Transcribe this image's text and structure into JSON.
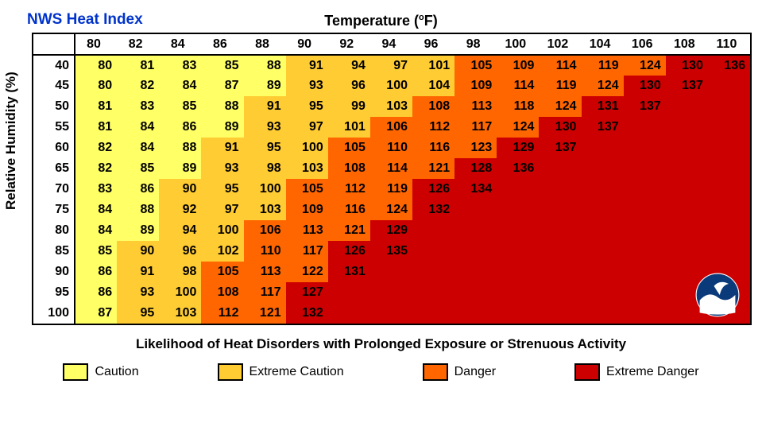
{
  "title": "NWS Heat Index",
  "temp_axis_label": "Temperature (°F)",
  "rh_axis_label": "Relative Humidity (%)",
  "subtitle": "Likelihood of Heat Disorders with Prolonged Exposure or Strenuous Activity",
  "colors": {
    "caution": "#ffff66",
    "extreme_caution": "#ffcc33",
    "danger": "#ff6600",
    "extreme_danger": "#cc0000",
    "header_bg": "#ffffff",
    "border": "#000000",
    "title_color": "#0033cc"
  },
  "temperatures": [
    80,
    82,
    84,
    86,
    88,
    90,
    92,
    94,
    96,
    98,
    100,
    102,
    104,
    106,
    108,
    110
  ],
  "humidity": [
    40,
    45,
    50,
    55,
    60,
    65,
    70,
    75,
    80,
    85,
    90,
    95,
    100
  ],
  "cells": [
    [
      80,
      81,
      83,
      85,
      88,
      91,
      94,
      97,
      101,
      105,
      109,
      114,
      119,
      124,
      130,
      136
    ],
    [
      80,
      82,
      84,
      87,
      89,
      93,
      96,
      100,
      104,
      109,
      114,
      119,
      124,
      130,
      137,
      null
    ],
    [
      81,
      83,
      85,
      88,
      91,
      95,
      99,
      103,
      108,
      113,
      118,
      124,
      131,
      137,
      null,
      null
    ],
    [
      81,
      84,
      86,
      89,
      93,
      97,
      101,
      106,
      112,
      117,
      124,
      130,
      137,
      null,
      null,
      null
    ],
    [
      82,
      84,
      88,
      91,
      95,
      100,
      105,
      110,
      116,
      123,
      129,
      137,
      null,
      null,
      null,
      null
    ],
    [
      82,
      85,
      89,
      93,
      98,
      103,
      108,
      114,
      121,
      128,
      136,
      null,
      null,
      null,
      null,
      null
    ],
    [
      83,
      86,
      90,
      95,
      100,
      105,
      112,
      119,
      126,
      134,
      null,
      null,
      null,
      null,
      null,
      null
    ],
    [
      84,
      88,
      92,
      97,
      103,
      109,
      116,
      124,
      132,
      null,
      null,
      null,
      null,
      null,
      null,
      null
    ],
    [
      84,
      89,
      94,
      100,
      106,
      113,
      121,
      129,
      null,
      null,
      null,
      null,
      null,
      null,
      null,
      null
    ],
    [
      85,
      90,
      96,
      102,
      110,
      117,
      126,
      135,
      null,
      null,
      null,
      null,
      null,
      null,
      null,
      null
    ],
    [
      86,
      91,
      98,
      105,
      113,
      122,
      131,
      null,
      null,
      null,
      null,
      null,
      null,
      null,
      null,
      null
    ],
    [
      86,
      93,
      100,
      108,
      117,
      127,
      null,
      null,
      null,
      null,
      null,
      null,
      null,
      null,
      null,
      null
    ],
    [
      87,
      95,
      103,
      112,
      121,
      132,
      null,
      null,
      null,
      null,
      null,
      null,
      null,
      null,
      null,
      null
    ]
  ],
  "thresholds": {
    "caution_max": 89,
    "extreme_caution_max": 104,
    "danger_max": 125
  },
  "legend": [
    {
      "label": "Caution",
      "color_key": "caution"
    },
    {
      "label": "Extreme Caution",
      "color_key": "extreme_caution"
    },
    {
      "label": "Danger",
      "color_key": "danger"
    },
    {
      "label": "Extreme Danger",
      "color_key": "extreme_danger"
    }
  ],
  "logo_label": "NOAA logo"
}
